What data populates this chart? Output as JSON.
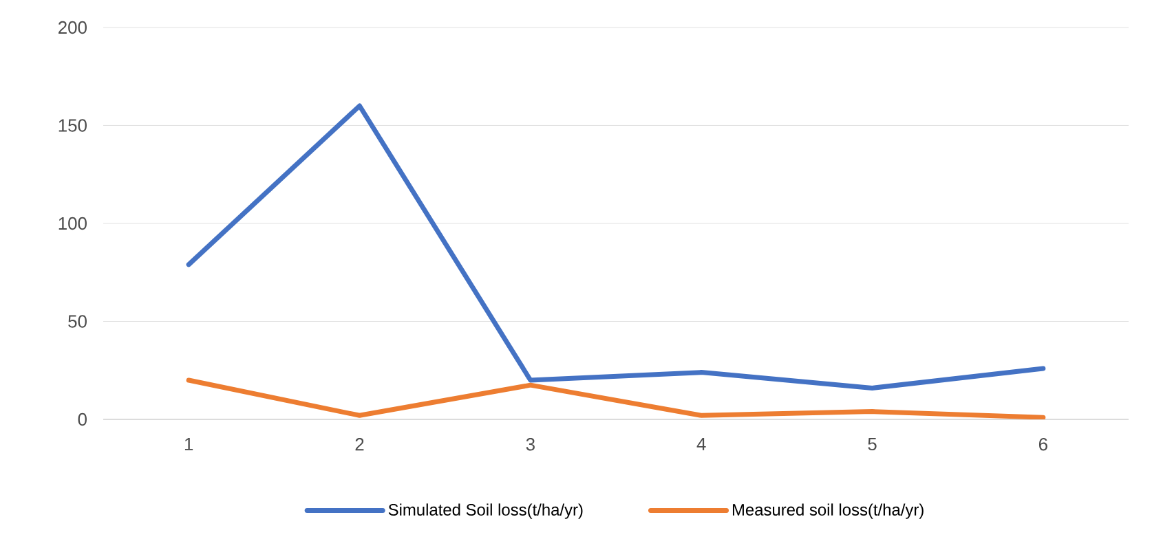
{
  "chart_data": {
    "type": "line",
    "categories": [
      "1",
      "2",
      "3",
      "4",
      "5",
      "6"
    ],
    "series": [
      {
        "name": "Simulated Soil loss(t/ha/yr)",
        "color": "#4472c4",
        "values": [
          79,
          160,
          20,
          24,
          16,
          26
        ]
      },
      {
        "name": "Measured soil loss(t/ha/yr)",
        "color": "#ed7d31",
        "values": [
          20,
          2,
          17.5,
          2,
          4,
          1
        ]
      }
    ],
    "ylim": [
      0,
      200
    ],
    "yticks": [
      0,
      50,
      100,
      150,
      200
    ],
    "grid": "y",
    "legend": "bottom",
    "marker": "none",
    "line_style": "solid"
  }
}
